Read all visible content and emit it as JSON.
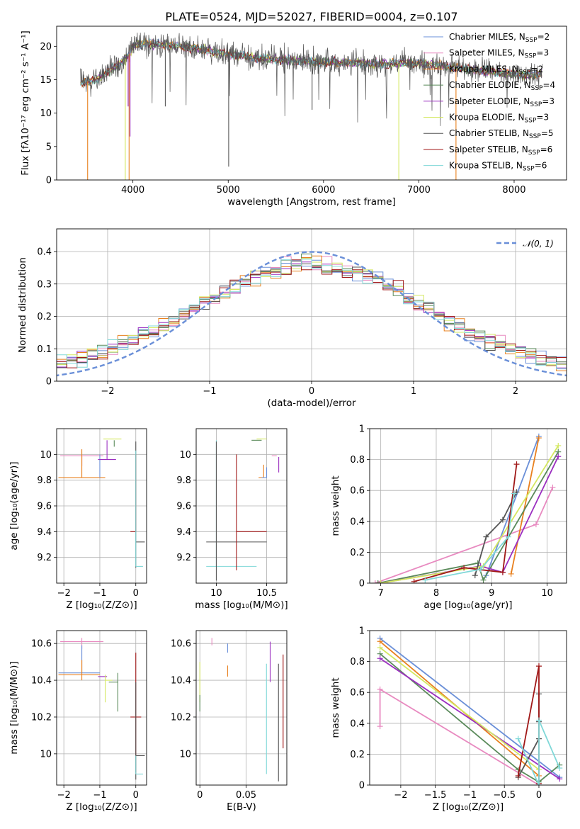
{
  "figure_title": "PLATE=0524, MJD=52027, FIBERID=0004, z=0.107",
  "model_colors": {
    "Chabrier MILES": "#6a8fd8",
    "Salpeter MILES": "#e88ac0",
    "Kroupa MILES": "#e8801e",
    "Chabrier ELODIE": "#5a8a5a",
    "Salpeter ELODIE": "#9b2fc0",
    "Kroupa ELODIE": "#d4e860",
    "Chabrier STELIB": "#555555",
    "Salpeter STELIB": "#a01818",
    "Kroupa STELIB": "#80d8d8"
  },
  "chart_data": [
    {
      "id": "spectrum",
      "type": "line",
      "title": "",
      "xlabel": "wavelength [Angstrom, rest frame]",
      "ylabel": "Flux [fλ10⁻¹⁷ erg cm⁻² s⁻¹ A⁻¹]",
      "xlim": [
        3200,
        8550
      ],
      "ylim": [
        0,
        23
      ],
      "xticks": [
        4000,
        5000,
        6000,
        7000,
        8000
      ],
      "yticks": [
        0,
        5,
        10,
        15,
        20
      ],
      "grid": false,
      "legend_position": "top-right",
      "legend": [
        {
          "label": "Chabrier MILES, N",
          "sub": "SSP",
          "suffix": "=2",
          "color": "#6a8fd8"
        },
        {
          "label": "Salpeter MILES, N",
          "sub": "SSP",
          "suffix": "=3",
          "color": "#e88ac0"
        },
        {
          "label": "Kroupa MILES, N",
          "sub": "SSP",
          "suffix": "=2",
          "color": "#e8801e"
        },
        {
          "label": "Chabrier ELODIE, N",
          "sub": "SSP",
          "suffix": "=4",
          "color": "#5a8a5a"
        },
        {
          "label": "Salpeter ELODIE, N",
          "sub": "SSP",
          "suffix": "=3",
          "color": "#9b2fc0"
        },
        {
          "label": "Kroupa ELODIE, N",
          "sub": "SSP",
          "suffix": "=3",
          "color": "#d4e860"
        },
        {
          "label": "Chabrier STELIB, N",
          "sub": "SSP",
          "suffix": "=5",
          "color": "#555555"
        },
        {
          "label": "Salpeter STELIB, N",
          "sub": "SSP",
          "suffix": "=6",
          "color": "#a01818"
        },
        {
          "label": "Kroupa STELIB, N",
          "sub": "SSP",
          "suffix": "=6",
          "color": "#80d8d8"
        }
      ],
      "continuum": {
        "x": [
          3450,
          3600,
          3800,
          3950,
          4000,
          4100,
          4300,
          4500,
          4700,
          4900,
          5100,
          5300,
          5500,
          5800,
          6000,
          6300,
          6600,
          6900,
          7200,
          7500,
          7800,
          8000,
          8200,
          8300
        ],
        "y": [
          14.5,
          14.8,
          16.8,
          18.5,
          20.0,
          20.5,
          20.2,
          20.0,
          19.6,
          19.0,
          18.6,
          18.3,
          18.0,
          17.8,
          17.6,
          17.5,
          17.3,
          17.5,
          17.2,
          16.6,
          16.2,
          15.9,
          15.7,
          16.0
        ]
      },
      "spikes": [
        {
          "x": 3525,
          "y": 0,
          "color": "#e8801e"
        },
        {
          "x": 3920,
          "y": 0,
          "color": "#d4e860"
        },
        {
          "x": 3960,
          "y": 0,
          "color": "#e8801e"
        },
        {
          "x": 3950,
          "y": 11.0,
          "color": "#9b2fc0"
        },
        {
          "x": 3970,
          "y": 6.5,
          "color": "#9b2fc0"
        },
        {
          "x": 4340,
          "y": 11.0,
          "color": "#555555"
        },
        {
          "x": 5005,
          "y": 2.0,
          "color": "#555555"
        },
        {
          "x": 5880,
          "y": 10.5,
          "color": "#555555"
        },
        {
          "x": 6790,
          "y": 0,
          "color": "#d4e860"
        },
        {
          "x": 7390,
          "y": 0,
          "color": "#e8801e"
        }
      ]
    },
    {
      "id": "residuals",
      "type": "histogram",
      "title": "",
      "xlabel": "(data-model)/error",
      "ylabel": "Normed distribution",
      "xlim": [
        -2.5,
        2.5
      ],
      "ylim": [
        0,
        0.47
      ],
      "xticks": [
        -2,
        -1,
        0,
        1,
        2
      ],
      "yticks": [
        0.0,
        0.1,
        0.2,
        0.3,
        0.4
      ],
      "grid": true,
      "legend_position": "top-right",
      "normal_label": "𝒩(0, 1)",
      "normal_color": "#6a8fd8",
      "normal": {
        "mean": 0,
        "sigma": 1
      }
    },
    {
      "id": "Z-age",
      "type": "errorbar",
      "xlabel": "Z [log₁₀(Z/Z⊙)]",
      "ylabel": "age  [log₁₀(age/yr)]",
      "xlim": [
        -2.2,
        0.3
      ],
      "ylim": [
        9.0,
        10.2
      ],
      "xticks": [
        -2,
        -1,
        0
      ],
      "yticks": [
        9.2,
        9.4,
        9.6,
        9.8,
        10.0
      ],
      "grid": true,
      "points": [
        {
          "model": "Salpeter MILES",
          "x": -1.5,
          "xerr": [
            0.6,
            0.6
          ],
          "y": 9.99,
          "yerr": [
            0.08,
            0.0
          ]
        },
        {
          "model": "Kroupa MILES",
          "x": -1.5,
          "xerr": [
            0.65,
            0.65
          ],
          "y": 9.82,
          "yerr": [
            0.0,
            0.22
          ]
        },
        {
          "model": "Chabrier MILES",
          "x": -1.0,
          "xerr": [
            0.0,
            0.0
          ],
          "y": 9.82,
          "yerr": [
            0.0,
            0.18
          ]
        },
        {
          "model": "Kroupa ELODIE",
          "x": -0.9,
          "xerr": [
            0.0,
            0.5
          ],
          "y": 10.12,
          "yerr": [
            0.0,
            0.0
          ]
        },
        {
          "model": "Salpeter ELODIE",
          "x": -0.8,
          "xerr": [
            0.25,
            0.25
          ],
          "y": 9.96,
          "yerr": [
            0.0,
            0.15
          ]
        },
        {
          "model": "Chabrier ELODIE",
          "x": -0.6,
          "xerr": [
            0.0,
            0.0
          ],
          "y": 10.11,
          "yerr": [
            0.05,
            0.0
          ]
        },
        {
          "model": "Chabrier STELIB",
          "x": 0.0,
          "xerr": [
            0.0,
            0.25
          ],
          "y": 9.32,
          "yerr": [
            0.2,
            0.78
          ]
        },
        {
          "model": "Salpeter STELIB",
          "x": 0.0,
          "xerr": [
            0.15,
            0.0
          ],
          "y": 9.4,
          "yerr": [
            0.0,
            0.6
          ]
        },
        {
          "model": "Kroupa STELIB",
          "x": 0.0,
          "xerr": [
            0.0,
            0.2
          ],
          "y": 9.13,
          "yerr": [
            0.0,
            0.9
          ]
        }
      ]
    },
    {
      "id": "mass-age",
      "type": "errorbar",
      "xlabel": "mass [log₁₀(M/M⊙)]",
      "ylabel": "",
      "xlim": [
        9.8,
        10.7
      ],
      "ylim": [
        9.0,
        10.2
      ],
      "xticks": [
        10.0,
        10.5
      ],
      "yticks": [
        9.2,
        9.4,
        9.6,
        9.8,
        10.0
      ],
      "grid": true,
      "points": [
        {
          "model": "Kroupa STELIB",
          "x": 10.0,
          "xerr": [
            0.1,
            0.4
          ],
          "y": 9.13,
          "yerr": [
            0.0,
            0.98
          ]
        },
        {
          "model": "Chabrier STELIB",
          "x": 10.0,
          "xerr": [
            0.1,
            0.5
          ],
          "y": 9.32,
          "yerr": [
            0.3,
            0.78
          ]
        },
        {
          "model": "Salpeter STELIB",
          "x": 10.2,
          "xerr": [
            0.0,
            0.3
          ],
          "y": 9.4,
          "yerr": [
            0.3,
            0.6
          ]
        },
        {
          "model": "Kroupa ELODIE",
          "x": 10.45,
          "xerr": [
            0.05,
            0.05
          ],
          "y": 10.12,
          "yerr": [
            0.0,
            0.0
          ]
        },
        {
          "model": "Chabrier ELODIE",
          "x": 10.4,
          "xerr": [
            0.05,
            0.05
          ],
          "y": 10.11,
          "yerr": [
            0.0,
            0.0
          ]
        },
        {
          "model": "Kroupa MILES",
          "x": 10.47,
          "xerr": [
            0.05,
            0.0
          ],
          "y": 9.82,
          "yerr": [
            0.0,
            0.1
          ]
        },
        {
          "model": "Chabrier MILES",
          "x": 10.5,
          "xerr": [
            0.05,
            0.0
          ],
          "y": 9.82,
          "yerr": [
            0.0,
            0.08
          ]
        },
        {
          "model": "Salpeter ELODIE",
          "x": 10.62,
          "xerr": [
            0.0,
            0.0
          ],
          "y": 9.96,
          "yerr": [
            0.1,
            0.02
          ]
        },
        {
          "model": "Salpeter MILES",
          "x": 10.6,
          "xerr": [
            0.05,
            0.0
          ],
          "y": 9.99,
          "yerr": [
            0.0,
            0.0
          ]
        }
      ]
    },
    {
      "id": "age-weight",
      "type": "line",
      "xlabel": "age  [log₁₀(age/yr)]",
      "ylabel": "mass weight",
      "xlim": [
        6.8,
        10.35
      ],
      "ylim": [
        0,
        1
      ],
      "xticks": [
        7,
        8,
        9,
        10
      ],
      "yticks": [
        0.0,
        0.2,
        0.4,
        0.6,
        0.8,
        1.0
      ],
      "grid": true,
      "series": [
        {
          "model": "Chabrier MILES",
          "x": [
            8.9,
            9.85
          ],
          "y": [
            0.05,
            0.95
          ]
        },
        {
          "model": "Salpeter MILES",
          "x": [
            6.9,
            9.8,
            10.1
          ],
          "y": [
            0.0,
            0.38,
            0.62
          ]
        },
        {
          "model": "Kroupa MILES",
          "x": [
            9.35,
            9.85
          ],
          "y": [
            0.06,
            0.94
          ]
        },
        {
          "model": "Chabrier ELODIE",
          "x": [
            6.95,
            8.75,
            8.85,
            10.2
          ],
          "y": [
            0.0,
            0.13,
            0.02,
            0.85
          ]
        },
        {
          "model": "Salpeter ELODIE",
          "x": [
            7.0,
            8.8,
            9.2,
            10.2
          ],
          "y": [
            0.0,
            0.11,
            0.07,
            0.82
          ]
        },
        {
          "model": "Kroupa ELODIE",
          "x": [
            7.0,
            8.85,
            10.2
          ],
          "y": [
            0.0,
            0.11,
            0.89
          ]
        },
        {
          "model": "Chabrier STELIB",
          "x": [
            8.7,
            8.9,
            9.2,
            9.45
          ],
          "y": [
            0.05,
            0.3,
            0.41,
            0.59
          ]
        },
        {
          "model": "Salpeter STELIB",
          "x": [
            7.6,
            8.5,
            9.2,
            9.45
          ],
          "y": [
            0.01,
            0.1,
            0.07,
            0.77
          ]
        },
        {
          "model": "Kroupa STELIB",
          "x": [
            7.8,
            8.8,
            9.3,
            9.4
          ],
          "y": [
            0.02,
            0.09,
            0.3,
            0.58
          ]
        }
      ]
    },
    {
      "id": "Z-mass",
      "type": "errorbar",
      "xlabel": "Z [log₁₀(Z/Z⊙)]",
      "ylabel": "mass [log₁₀(M/M⊙)]",
      "xlim": [
        -2.2,
        0.3
      ],
      "ylim": [
        9.83,
        10.67
      ],
      "xticks": [
        -2,
        -1,
        0
      ],
      "yticks": [
        10.0,
        10.2,
        10.4,
        10.6
      ],
      "grid": true,
      "points": [
        {
          "model": "Salpeter MILES",
          "x": -1.5,
          "xerr": [
            0.6,
            0.6
          ],
          "y": 10.61,
          "yerr": [
            0.04,
            0.02
          ]
        },
        {
          "model": "Chabrier MILES",
          "x": -1.5,
          "xerr": [
            0.65,
            0.5
          ],
          "y": 10.44,
          "yerr": [
            0.0,
            0.15
          ]
        },
        {
          "model": "Kroupa MILES",
          "x": -1.5,
          "xerr": [
            0.65,
            0.5
          ],
          "y": 10.43,
          "yerr": [
            0.03,
            0.08
          ]
        },
        {
          "model": "Salpeter ELODIE",
          "x": -0.8,
          "xerr": [
            0.25,
            0.0
          ],
          "y": 10.42,
          "yerr": [
            0.0,
            0.0
          ]
        },
        {
          "model": "Kroupa ELODIE",
          "x": -0.85,
          "xerr": [
            0.0,
            0.2
          ],
          "y": 10.4,
          "yerr": [
            0.12,
            0.03
          ]
        },
        {
          "model": "Chabrier ELODIE",
          "x": -0.5,
          "xerr": [
            0.25,
            0.0
          ],
          "y": 10.39,
          "yerr": [
            0.16,
            0.05
          ]
        },
        {
          "model": "Salpeter STELIB",
          "x": 0.0,
          "xerr": [
            0.15,
            0.15
          ],
          "y": 10.2,
          "yerr": [
            0.3,
            0.35
          ]
        },
        {
          "model": "Chabrier STELIB",
          "x": 0.0,
          "xerr": [
            0.0,
            0.25
          ],
          "y": 9.99,
          "yerr": [
            0.13,
            0.4
          ]
        },
        {
          "model": "Kroupa STELIB",
          "x": 0.0,
          "xerr": [
            0.0,
            0.2
          ],
          "y": 9.89,
          "yerr": [
            0.0,
            0.1
          ]
        }
      ]
    },
    {
      "id": "ebv-mass",
      "type": "errorbar",
      "xlabel": "E(B-V)",
      "ylabel": "",
      "xlim": [
        -0.004,
        0.094
      ],
      "ylim": [
        9.83,
        10.67
      ],
      "xticks": [
        0.0,
        0.05
      ],
      "yticks": [
        10.0,
        10.2,
        10.4,
        10.6
      ],
      "grid": true,
      "points": [
        {
          "model": "Kroupa ELODIE",
          "x": 0.0,
          "y": 10.35,
          "yerr": [
            0.07,
            0.15
          ]
        },
        {
          "model": "Chabrier ELODIE",
          "x": 0.0,
          "y": 10.26,
          "yerr": [
            0.03,
            0.06
          ]
        },
        {
          "model": "Salpeter MILES",
          "x": 0.013,
          "y": 10.61,
          "yerr": [
            0.02,
            0.02
          ]
        },
        {
          "model": "Chabrier MILES",
          "x": 0.03,
          "y": 10.55,
          "yerr": [
            0.0,
            0.05
          ]
        },
        {
          "model": "Kroupa MILES",
          "x": 0.03,
          "y": 10.45,
          "yerr": [
            0.03,
            0.03
          ]
        },
        {
          "model": "Kroupa STELIB",
          "x": 0.072,
          "y": 10.2,
          "yerr": [
            0.31,
            0.29
          ]
        },
        {
          "model": "Salpeter ELODIE",
          "x": 0.076,
          "y": 10.5,
          "yerr": [
            0.11,
            0.11
          ]
        },
        {
          "model": "Chabrier STELIB",
          "x": 0.085,
          "y": 10.2,
          "yerr": [
            0.35,
            0.29
          ]
        },
        {
          "model": "Salpeter STELIB",
          "x": 0.09,
          "y": 10.29,
          "yerr": [
            0.26,
            0.25
          ]
        }
      ]
    },
    {
      "id": "Z-weight",
      "type": "line",
      "xlabel": "Z [log₁₀(Z/Z⊙)]",
      "ylabel": "mass weight",
      "xlim": [
        -2.45,
        0.4
      ],
      "ylim": [
        0,
        1
      ],
      "xticks": [
        -2.0,
        -1.5,
        -1.0,
        -0.5,
        0.0
      ],
      "yticks": [
        0.0,
        0.2,
        0.4,
        0.6,
        0.8,
        1.0
      ],
      "grid": true,
      "series": [
        {
          "model": "Chabrier MILES",
          "x": [
            -2.3,
            0.3
          ],
          "y": [
            0.95,
            0.05
          ]
        },
        {
          "model": "Salpeter MILES",
          "x": [
            -2.3,
            -2.3,
            0.0
          ],
          "y": [
            0.38,
            0.62,
            0.0
          ]
        },
        {
          "model": "Kroupa MILES",
          "x": [
            -2.3,
            0.0
          ],
          "y": [
            0.93,
            0.06
          ]
        },
        {
          "model": "Chabrier ELODIE",
          "x": [
            -2.3,
            -0.3,
            0.0,
            0.3
          ],
          "y": [
            0.85,
            0.1,
            0.02,
            0.13
          ]
        },
        {
          "model": "Salpeter ELODIE",
          "x": [
            -2.3,
            0.3
          ],
          "y": [
            0.82,
            0.04
          ]
        },
        {
          "model": "Kroupa ELODIE",
          "x": [
            -2.3,
            0.0
          ],
          "y": [
            0.89,
            0.1
          ]
        },
        {
          "model": "Chabrier STELIB",
          "x": [
            -0.3,
            0.0,
            0.0,
            0.0
          ],
          "y": [
            0.05,
            0.3,
            0.59,
            0.41
          ]
        },
        {
          "model": "Salpeter STELIB",
          "x": [
            -0.3,
            0.0,
            0.0
          ],
          "y": [
            0.06,
            0.77,
            0.01
          ]
        },
        {
          "model": "Kroupa STELIB",
          "x": [
            -0.3,
            0.0,
            0.0,
            0.3
          ],
          "y": [
            0.3,
            0.0,
            0.42,
            0.11
          ]
        }
      ]
    }
  ]
}
